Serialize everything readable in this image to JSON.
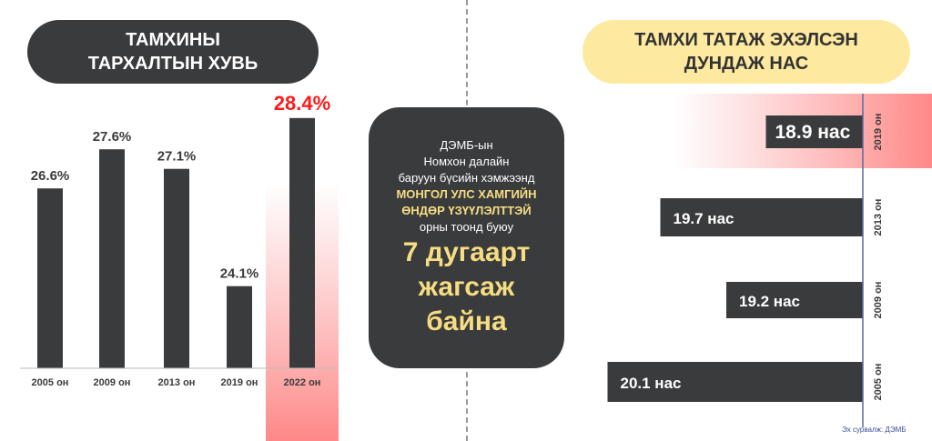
{
  "left_title": [
    "ТАМХИНЫ",
    "ТАРХАЛТЫН ХУВЬ"
  ],
  "right_title": [
    "ТАМХИ ТАТАЖ ЭХЭЛСЭН",
    "ДУНДАЖ НАС"
  ],
  "center": {
    "lines": [
      "ДЭМБ-ын",
      "Номхон далайн",
      "баруун бүсийн хэмжээнд"
    ],
    "highlight": [
      "МОНГОЛ УЛС ХАМГИЙН",
      "ӨНДӨР ҮЗҮҮЛЭЛТТЭЙ"
    ],
    "line_after": "орны тоонд буюу",
    "big": [
      "7 дугаарт",
      "жагсаж",
      "байна"
    ]
  },
  "source": "Эх сурвалж: ДЭМБ",
  "colors": {
    "bar": "#3a3b3d",
    "highlight_red": "#ff1a1a",
    "band": "#f99a9a",
    "title_yellow": "#fde9a0"
  },
  "chart_data": [
    {
      "type": "bar",
      "title": "ТАМХИНЫ ТАРХАЛТЫН ХУВЬ",
      "categories": [
        "2005 он",
        "2009 он",
        "2013 он",
        "2019 он",
        "2022 он"
      ],
      "values": [
        26.6,
        27.6,
        27.1,
        24.1,
        28.4
      ],
      "labels": [
        "26.6%",
        "27.6%",
        "27.1%",
        "24.1%",
        "28.4%"
      ],
      "highlight": "2022 он"
    },
    {
      "type": "bar",
      "orientation": "horizontal",
      "title": "ТАМХИ ТАТАЖ ЭХЭЛСЭН ДУНДАЖ НАС",
      "categories": [
        "2019 он",
        "2013 он",
        "2009 он",
        "2005 он"
      ],
      "values": [
        18.9,
        19.7,
        19.2,
        20.1
      ],
      "labels": [
        "18.9 нас",
        "19.7 нас",
        "19.2 нас",
        "20.1 нас"
      ],
      "highlight": "2019 он"
    }
  ]
}
